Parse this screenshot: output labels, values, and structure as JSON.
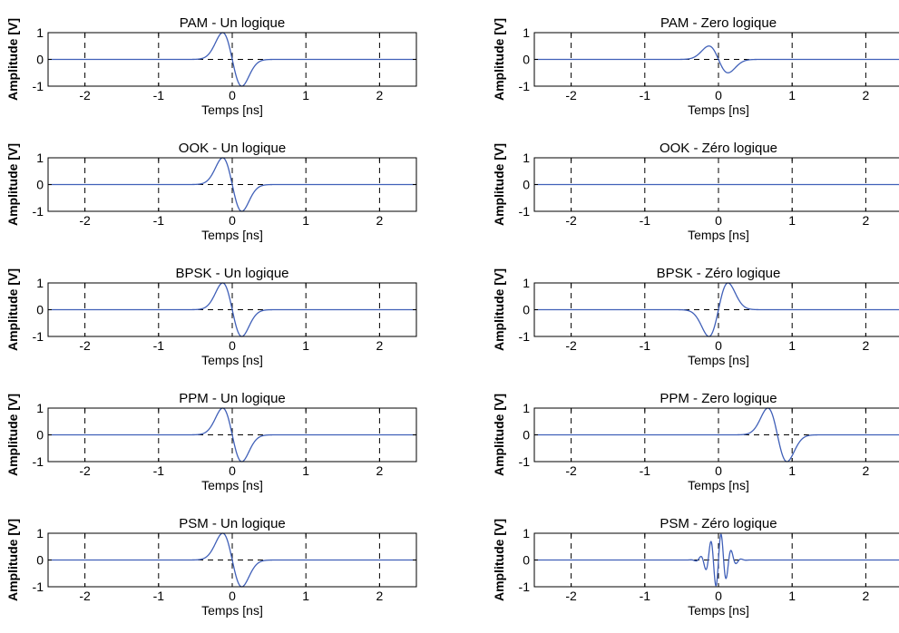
{
  "figure": {
    "x_axis_label": "Temps [ns]",
    "y_axis_label": "Amplitude [V]",
    "line_color": "#4060b8",
    "dash_color": "#000000"
  },
  "chart_data": [
    {
      "type": "line",
      "title": "PAM - Un logique",
      "xlabel": "Temps [ns]",
      "ylabel": "Amplitude [V]",
      "xlim": [
        -2.5,
        2.5
      ],
      "ylim": [
        -1,
        1
      ],
      "xticks": [
        -2,
        -1,
        0,
        1,
        2
      ],
      "yticks": [
        -1,
        0,
        1
      ],
      "grid": "dashed",
      "series": [
        {
          "pulse": "gaussian-monocycle",
          "amplitude": 1,
          "t0": 0,
          "width": 0.13
        }
      ]
    },
    {
      "type": "line",
      "title": "PAM - Zero logique",
      "xlabel": "Temps [ns]",
      "ylabel": "Amplitude [V]",
      "xlim": [
        -2.5,
        2.5
      ],
      "ylim": [
        -1,
        1
      ],
      "xticks": [
        -2,
        -1,
        0,
        1,
        2
      ],
      "yticks": [
        -1,
        0,
        1
      ],
      "grid": "dashed",
      "series": [
        {
          "pulse": "gaussian-monocycle",
          "amplitude": 0.5,
          "t0": 0,
          "width": 0.13
        }
      ]
    },
    {
      "type": "line",
      "title": "OOK - Un logique",
      "xlabel": "Temps [ns]",
      "ylabel": "Amplitude [V]",
      "xlim": [
        -2.5,
        2.5
      ],
      "ylim": [
        -1,
        1
      ],
      "xticks": [
        -2,
        -1,
        0,
        1,
        2
      ],
      "yticks": [
        -1,
        0,
        1
      ],
      "grid": "dashed",
      "series": [
        {
          "pulse": "gaussian-monocycle",
          "amplitude": 1,
          "t0": 0,
          "width": 0.13
        }
      ]
    },
    {
      "type": "line",
      "title": "OOK - Zéro logique",
      "xlabel": "Temps [ns]",
      "ylabel": "Amplitude [V]",
      "xlim": [
        -2.5,
        2.5
      ],
      "ylim": [
        -1,
        1
      ],
      "xticks": [
        -2,
        -1,
        0,
        1,
        2
      ],
      "yticks": [
        -1,
        0,
        1
      ],
      "grid": "dashed",
      "series": [
        {
          "pulse": "none",
          "amplitude": 0,
          "t0": 0,
          "width": 0.13
        }
      ]
    },
    {
      "type": "line",
      "title": "BPSK - Un logique",
      "xlabel": "Temps [ns]",
      "ylabel": "Amplitude [V]",
      "xlim": [
        -2.5,
        2.5
      ],
      "ylim": [
        -1,
        1
      ],
      "xticks": [
        -2,
        -1,
        0,
        1,
        2
      ],
      "yticks": [
        -1,
        0,
        1
      ],
      "grid": "dashed",
      "series": [
        {
          "pulse": "gaussian-monocycle",
          "amplitude": 1,
          "t0": 0,
          "width": 0.13
        }
      ]
    },
    {
      "type": "line",
      "title": "BPSK - Zéro logique",
      "xlabel": "Temps [ns]",
      "ylabel": "Amplitude [V]",
      "xlim": [
        -2.5,
        2.5
      ],
      "ylim": [
        -1,
        1
      ],
      "xticks": [
        -2,
        -1,
        0,
        1,
        2
      ],
      "yticks": [
        -1,
        0,
        1
      ],
      "grid": "dashed",
      "series": [
        {
          "pulse": "gaussian-monocycle",
          "amplitude": -1,
          "t0": 0,
          "width": 0.13
        }
      ]
    },
    {
      "type": "line",
      "title": "PPM - Un logique",
      "xlabel": "Temps [ns]",
      "ylabel": "Amplitude [V]",
      "xlim": [
        -2.5,
        2.5
      ],
      "ylim": [
        -1,
        1
      ],
      "xticks": [
        -2,
        -1,
        0,
        1,
        2
      ],
      "yticks": [
        -1,
        0,
        1
      ],
      "grid": "dashed",
      "series": [
        {
          "pulse": "gaussian-monocycle",
          "amplitude": 1,
          "t0": 0,
          "width": 0.13
        }
      ]
    },
    {
      "type": "line",
      "title": "PPM - Zero logique",
      "xlabel": "Temps [ns]",
      "ylabel": "Amplitude [V]",
      "xlim": [
        -2.5,
        2.5
      ],
      "ylim": [
        -1,
        1
      ],
      "xticks": [
        -2,
        -1,
        0,
        1,
        2
      ],
      "yticks": [
        -1,
        0,
        1
      ],
      "grid": "dashed",
      "series": [
        {
          "pulse": "gaussian-monocycle",
          "amplitude": 1,
          "t0": 0.8,
          "width": 0.13
        }
      ]
    },
    {
      "type": "line",
      "title": "PSM - Un logique",
      "xlabel": "Temps [ns]",
      "ylabel": "Amplitude [V]",
      "xlim": [
        -2.5,
        2.5
      ],
      "ylim": [
        -1,
        1
      ],
      "xticks": [
        -2,
        -1,
        0,
        1,
        2
      ],
      "yticks": [
        -1,
        0,
        1
      ],
      "grid": "dashed",
      "series": [
        {
          "pulse": "gaussian-monocycle",
          "amplitude": 1,
          "t0": 0,
          "width": 0.13
        }
      ]
    },
    {
      "type": "line",
      "title": "PSM - Zéro logique",
      "xlabel": "Temps [ns]",
      "ylabel": "Amplitude [V]",
      "xlim": [
        -2.5,
        2.5
      ],
      "ylim": [
        -1,
        1
      ],
      "xticks": [
        -2,
        -1,
        0,
        1,
        2
      ],
      "yticks": [
        -1,
        0,
        1
      ],
      "grid": "dashed",
      "series": [
        {
          "pulse": "high-order-derivative",
          "amplitude": 1,
          "t0": 0,
          "width": 0.13
        }
      ]
    }
  ]
}
